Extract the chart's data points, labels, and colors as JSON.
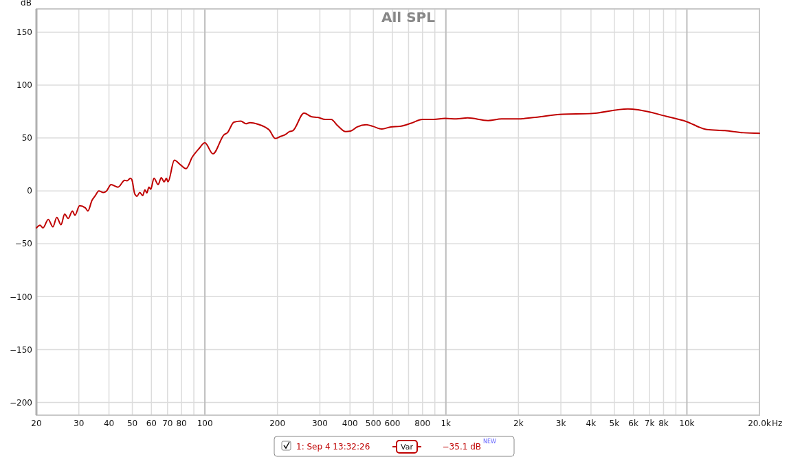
{
  "chart_data": {
    "type": "line",
    "title": "All SPL",
    "ylabel": "dB",
    "x": [
      20,
      20.7,
      21.3,
      22.4,
      23.4,
      24.3,
      25.3,
      26.2,
      27.1,
      28.2,
      28.9,
      30.2,
      31.9,
      32.7,
      34,
      35.1,
      36.3,
      37.9,
      39.1,
      40.8,
      43.6,
      46.5,
      47.5,
      49.1,
      49.8,
      51.2,
      52.3,
      53.7,
      55.2,
      56.4,
      57.4,
      58.6,
      59.6,
      61.5,
      64,
      65.9,
      67.8,
      69.2,
      70.3,
      74.7,
      79.3,
      83.5,
      88.7,
      94.6,
      100,
      108,
      120,
      124,
      132,
      141,
      148,
      154,
      166,
      177,
      185,
      196,
      206,
      215,
      224,
      232,
      258,
      278,
      294,
      316,
      334,
      356,
      384,
      402,
      429,
      467,
      498,
      542,
      592,
      644,
      718,
      800,
      891,
      993,
      1105,
      1231,
      1496,
      1702,
      1978,
      2350,
      3048,
      3944,
      5692,
      6336,
      8204,
      9955,
      12100,
      14380,
      17100,
      20000
    ],
    "series": [
      {
        "name": "1: Sep 4 13:32:26",
        "color": "#bf0000",
        "values": [
          -35,
          -32.5,
          -35,
          -27,
          -34,
          -25,
          -32,
          -22,
          -26,
          -19,
          -23,
          -14,
          -16,
          -19,
          -9,
          -4.5,
          0,
          -1.5,
          0,
          6,
          3.5,
          10,
          9.5,
          12,
          10.5,
          -3,
          -5,
          -1.5,
          -4.5,
          1,
          -2,
          3.5,
          1.5,
          12,
          6,
          12.5,
          8.5,
          12,
          8.5,
          29,
          24.5,
          21,
          32,
          40,
          45.5,
          35,
          53,
          55,
          65,
          66,
          63.5,
          64.5,
          63,
          60.5,
          57.5,
          49.5,
          51.5,
          53,
          56,
          57,
          73.5,
          70,
          69.5,
          67.5,
          67.5,
          61.5,
          56,
          56.5,
          60.5,
          62.5,
          61,
          58.5,
          60.5,
          61,
          64,
          67.5,
          67.5,
          68.5,
          68,
          69,
          66.5,
          68,
          68,
          69.5,
          72.5,
          73,
          77.5,
          76.5,
          70.5,
          65.5,
          58,
          57,
          55,
          54.5
        ]
      }
    ],
    "xlim": [
      20,
      20000
    ],
    "log": "x",
    "xticks": [
      20,
      30,
      40,
      50,
      60,
      70,
      80,
      {
        "value": 90,
        "label": null
      },
      100,
      200,
      300,
      400,
      500,
      600,
      {
        "value": 700,
        "label": null
      },
      800,
      {
        "value": 900,
        "label": null
      },
      {
        "value": 1000,
        "label": "1k"
      },
      {
        "value": 2000,
        "label": "2k"
      },
      {
        "value": 3000,
        "label": "3k"
      },
      {
        "value": 4000,
        "label": "4k"
      },
      {
        "value": 5000,
        "label": "5k"
      },
      {
        "value": 6000,
        "label": "6k"
      },
      {
        "value": 7000,
        "label": "7k"
      },
      {
        "value": 8000,
        "label": "8k"
      },
      {
        "value": 9000,
        "label": null
      },
      {
        "value": 10000,
        "label": "10k"
      },
      {
        "value": 20000,
        "label": "20.0k"
      }
    ],
    "xlabel": "Hz",
    "ylim": [
      -212,
      172
    ],
    "yticks": [
      {
        "value": -200,
        "label": "−200"
      },
      {
        "value": -150,
        "label": "−150"
      },
      {
        "value": -100,
        "label": "−100"
      },
      {
        "value": -50,
        "label": "−50"
      },
      0,
      50,
      100,
      150
    ],
    "grid": true,
    "legend": "bottom",
    "marker": "none",
    "line_style": "solid",
    "annotations": [
      "Var",
      "−35.1 dB",
      "NEW"
    ]
  }
}
